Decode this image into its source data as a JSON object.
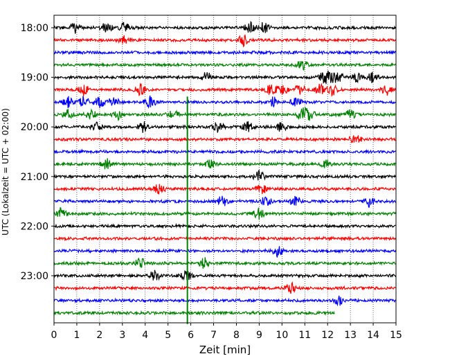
{
  "chart_data": {
    "type": "line",
    "title": "",
    "xlabel": "Zeit  [min]",
    "ylabel": "UTC (Lokalzeit = UTC + 02:00)",
    "xlim": [
      0,
      15
    ],
    "x_ticks": [
      "0",
      "1",
      "2",
      "3",
      "4",
      "5",
      "6",
      "7",
      "8",
      "9",
      "10",
      "11",
      "12",
      "13",
      "14",
      "15"
    ],
    "y_tick_labels": [
      "18:00",
      "19:00",
      "20:00",
      "21:00",
      "22:00",
      "23:00"
    ],
    "x_grid": true,
    "trace_interval_minutes": 15,
    "trace_start": "18:00",
    "trace_colors": [
      "#000000",
      "#ff0000",
      "#0000ff",
      "#008000"
    ],
    "last_trace_end_minute": 12.3,
    "series": [
      {
        "start": "18:00",
        "events": [
          0.9,
          2.3,
          3.1,
          8.6,
          9.2
        ]
      },
      {
        "start": "18:15",
        "events": [
          3.1,
          8.3
        ]
      },
      {
        "start": "18:30",
        "events": []
      },
      {
        "start": "18:45",
        "events": [
          10.9
        ]
      },
      {
        "start": "19:00",
        "events": [
          6.7,
          11.8,
          12.1,
          12.5,
          13.3,
          14.0
        ]
      },
      {
        "start": "19:15",
        "events": [
          1.3,
          3.8,
          9.5,
          10.0,
          10.8,
          11.7,
          12.2,
          14.6
        ]
      },
      {
        "start": "19:30",
        "events": [
          0.6,
          1.3,
          2.0,
          2.6,
          4.2,
          9.6,
          10.6
        ]
      },
      {
        "start": "19:45",
        "events": [
          0.6,
          1.6,
          2.8,
          5.2,
          10.9,
          11.2,
          13.0
        ]
      },
      {
        "start": "20:00",
        "events": [
          1.9,
          3.9,
          7.2,
          8.5,
          10.0
        ]
      },
      {
        "start": "20:15",
        "events": [
          13.2
        ]
      },
      {
        "start": "20:30",
        "events": []
      },
      {
        "start": "20:45",
        "events": [
          2.3,
          6.9,
          11.9
        ]
      },
      {
        "start": "21:00",
        "events": [
          9.0
        ]
      },
      {
        "start": "21:15",
        "events": [
          4.6,
          9.1
        ]
      },
      {
        "start": "21:30",
        "events": [
          7.4,
          9.3,
          10.6,
          13.8
        ]
      },
      {
        "start": "21:45",
        "events": [
          0.3,
          9.0
        ]
      },
      {
        "start": "22:00",
        "events": []
      },
      {
        "start": "22:15",
        "events": []
      },
      {
        "start": "22:30",
        "events": [
          9.8
        ]
      },
      {
        "start": "22:45",
        "events": [
          3.8,
          6.6
        ]
      },
      {
        "start": "23:00",
        "events": [
          4.4,
          5.8
        ]
      },
      {
        "start": "23:15",
        "events": [
          10.4
        ]
      },
      {
        "start": "23:30",
        "events": [
          12.5
        ]
      },
      {
        "start": "23:45",
        "events": []
      }
    ],
    "vertical_marker": {
      "start_trace": "19:30",
      "end_trace": "23:45",
      "minute": 5.85,
      "color": "#008000"
    }
  }
}
